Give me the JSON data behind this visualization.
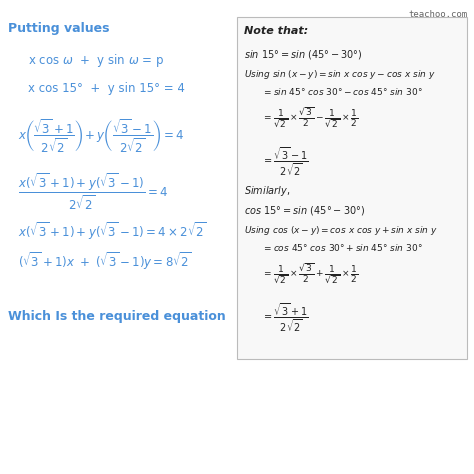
{
  "bg_color": "#ffffff",
  "watermark": "teachoo.com",
  "watermark_color": "#666666",
  "left_title": "Putting values",
  "left_title_color": "#4a90d9",
  "text_color": "#4a90d9",
  "right_box_color": "#f8f8f8",
  "right_box_edge": "#bbbbbb",
  "bottom_text": "Which Is the required equation",
  "bottom_text_color": "#4a90d9",
  "fig_w": 4.74,
  "fig_h": 4.74,
  "dpi": 100
}
